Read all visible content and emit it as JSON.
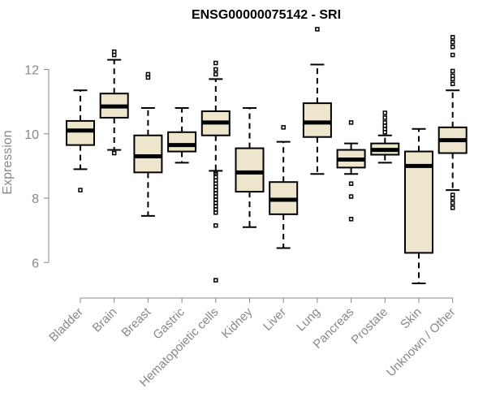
{
  "chart_data": {
    "type": "boxplot",
    "title": "ENSG00000075142 - SRI",
    "xlabel": "",
    "ylabel": "Expression",
    "ylim": [
      5.2,
      13.4
    ],
    "yticks": [
      6,
      8,
      10,
      12
    ],
    "box_fill": "#ede6cd",
    "categories": [
      "Bladder",
      "Brain",
      "Breast",
      "Gastric",
      "Hematopoietic cells",
      "Kidney",
      "Liver",
      "Lung",
      "Pancreas",
      "Prostate",
      "Skin",
      "Unknown / Other"
    ],
    "series": [
      {
        "min": 8.9,
        "q1": 9.65,
        "median": 10.1,
        "q3": 10.4,
        "max": 11.35,
        "outliers": [
          8.25
        ]
      },
      {
        "min": 9.5,
        "q1": 10.5,
        "median": 10.85,
        "q3": 11.25,
        "max": 12.3,
        "outliers": [
          9.4,
          12.45,
          12.55
        ]
      },
      {
        "min": 7.45,
        "q1": 8.8,
        "median": 9.3,
        "q3": 9.95,
        "max": 10.8,
        "outliers": [
          11.75,
          11.85
        ]
      },
      {
        "min": 9.1,
        "q1": 9.45,
        "median": 9.65,
        "q3": 10.05,
        "max": 10.8,
        "outliers": []
      },
      {
        "min": 8.85,
        "q1": 9.95,
        "median": 10.35,
        "q3": 10.7,
        "max": 11.7,
        "outliers": [
          5.45,
          7.15,
          7.55,
          7.65,
          7.75,
          7.85,
          7.95,
          8.05,
          8.15,
          8.25,
          8.35,
          8.45,
          8.55,
          8.65,
          8.75,
          8.8,
          11.85,
          12.0,
          12.2
        ]
      },
      {
        "min": 7.1,
        "q1": 8.2,
        "median": 8.8,
        "q3": 9.55,
        "max": 10.8,
        "outliers": []
      },
      {
        "min": 6.45,
        "q1": 7.5,
        "median": 7.95,
        "q3": 8.5,
        "max": 9.75,
        "outliers": [
          10.2
        ]
      },
      {
        "min": 8.75,
        "q1": 9.9,
        "median": 10.35,
        "q3": 10.95,
        "max": 12.15,
        "outliers": [
          13.25
        ]
      },
      {
        "min": 8.75,
        "q1": 8.95,
        "median": 9.2,
        "q3": 9.5,
        "max": 9.7,
        "outliers": [
          7.35,
          8.05,
          8.45,
          10.35
        ]
      },
      {
        "min": 9.1,
        "q1": 9.35,
        "median": 9.5,
        "q3": 9.7,
        "max": 9.95,
        "outliers": [
          10.05,
          10.15,
          10.25,
          10.35,
          10.5,
          10.65
        ]
      },
      {
        "min": 5.35,
        "q1": 6.3,
        "median": 9.0,
        "q3": 9.45,
        "max": 10.15,
        "outliers": []
      },
      {
        "min": 8.25,
        "q1": 9.4,
        "median": 9.8,
        "q3": 10.2,
        "max": 11.35,
        "outliers": [
          7.7,
          7.85,
          8.0,
          8.1,
          11.55,
          11.7,
          11.8,
          11.95,
          12.45,
          12.7,
          12.85,
          13.0
        ]
      }
    ]
  }
}
